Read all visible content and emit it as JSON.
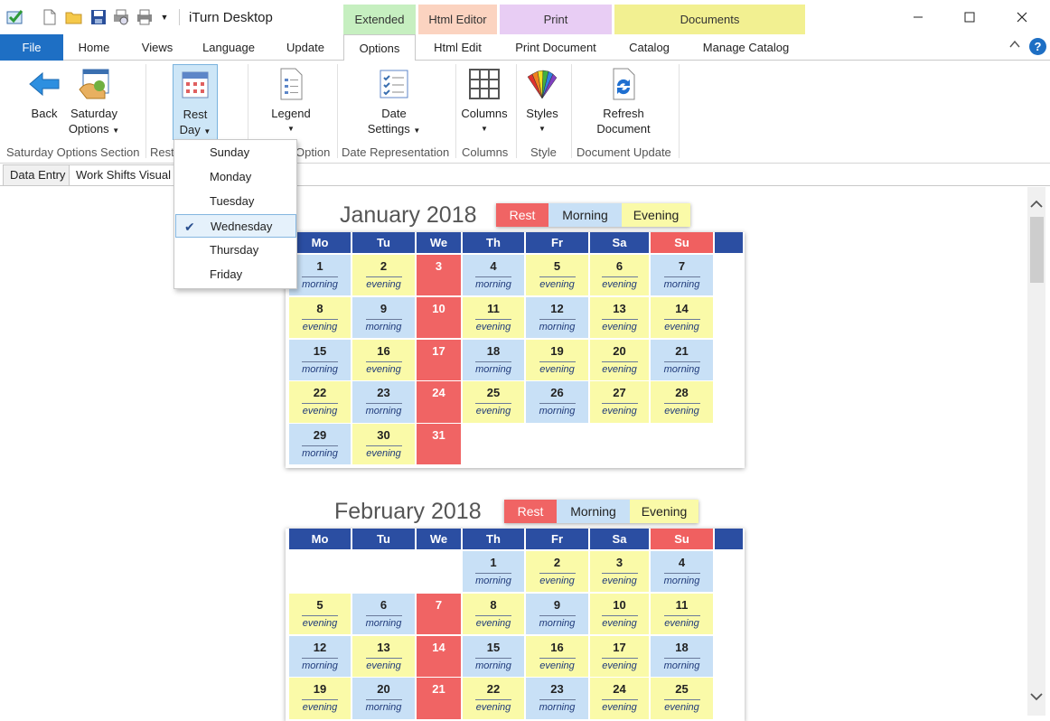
{
  "app": {
    "title": "iTurn Desktop"
  },
  "window": {
    "minimize_label": "—",
    "maximize_label": "☐",
    "close_label": "✕"
  },
  "context_groups": [
    {
      "label": "Extended",
      "color": "#c6efc0"
    },
    {
      "label": "Html Editor",
      "color": "#fbd3c0"
    },
    {
      "label": "Print",
      "color": "#e8cdf4"
    },
    {
      "label": "Documents",
      "color": "#f2f091"
    }
  ],
  "tabs": {
    "file": "File",
    "home": "Home",
    "views": "Views",
    "language": "Language",
    "update": "Update",
    "options": "Options",
    "html_edit": "Html Edit",
    "print_document": "Print Document",
    "catalog": "Catalog",
    "manage_catalog": "Manage Catalog",
    "help": "?",
    "collapse": "^"
  },
  "ribbon": {
    "back": "Back",
    "saturday_options_1": "Saturday",
    "saturday_options_2": "Options",
    "rest_day_1": "Rest",
    "rest_day_2": "Day",
    "legend": "Legend",
    "date_settings_1": "Date",
    "date_settings_2": "Settings",
    "columns": "Columns",
    "styles": "Styles",
    "refresh_1": "Refresh",
    "refresh_2": "Document",
    "groups": {
      "saturday": "Saturday Options Section",
      "rest": "Rest",
      "legend_option": "Option",
      "date_representation": "Date Representation",
      "columns": "Columns",
      "style": "Style",
      "document_update": "Document Update"
    }
  },
  "doc_tabs": {
    "data_entry": "Data Entry",
    "work_shifts": "Work Shifts Visual"
  },
  "dropdown": {
    "items": [
      "Sunday",
      "Monday",
      "Tuesday",
      "Wednesday",
      "Thursday",
      "Friday"
    ],
    "selected": "Wednesday",
    "check": "✔"
  },
  "colors": {
    "morning": "#c8e0f6",
    "evening": "#fafaa8",
    "rest": "#f06464",
    "header": "#2b4ea2"
  },
  "calendar": {
    "weekdays": [
      "Mo",
      "Tu",
      "We",
      "Th",
      "Fr",
      "Sa",
      "Su"
    ],
    "legend": [
      "Rest",
      "Morning",
      "Evening"
    ],
    "months": [
      {
        "title": "January 2018",
        "weeks": [
          [
            [
              "1",
              "morning"
            ],
            [
              "2",
              "evening"
            ],
            [
              "3",
              "rest"
            ],
            [
              "4",
              "morning"
            ],
            [
              "5",
              "evening"
            ],
            [
              "6",
              "evening"
            ],
            [
              "7",
              "morning"
            ]
          ],
          [
            [
              "8",
              "evening"
            ],
            [
              "9",
              "morning"
            ],
            [
              "10",
              "rest"
            ],
            [
              "11",
              "evening"
            ],
            [
              "12",
              "morning"
            ],
            [
              "13",
              "evening"
            ],
            [
              "14",
              "evening"
            ]
          ],
          [
            [
              "15",
              "morning"
            ],
            [
              "16",
              "evening"
            ],
            [
              "17",
              "rest"
            ],
            [
              "18",
              "morning"
            ],
            [
              "19",
              "evening"
            ],
            [
              "20",
              "evening"
            ],
            [
              "21",
              "morning"
            ]
          ],
          [
            [
              "22",
              "evening"
            ],
            [
              "23",
              "morning"
            ],
            [
              "24",
              "rest"
            ],
            [
              "25",
              "evening"
            ],
            [
              "26",
              "morning"
            ],
            [
              "27",
              "evening"
            ],
            [
              "28",
              "evening"
            ]
          ],
          [
            [
              "29",
              "morning"
            ],
            [
              "30",
              "evening"
            ],
            [
              "31",
              "rest"
            ],
            null,
            null,
            null,
            null
          ]
        ]
      },
      {
        "title": "February 2018",
        "weeks": [
          [
            null,
            null,
            null,
            [
              "1",
              "morning"
            ],
            [
              "2",
              "evening"
            ],
            [
              "3",
              "evening"
            ],
            [
              "4",
              "morning"
            ]
          ],
          [
            [
              "5",
              "evening"
            ],
            [
              "6",
              "morning"
            ],
            [
              "7",
              "rest"
            ],
            [
              "8",
              "evening"
            ],
            [
              "9",
              "morning"
            ],
            [
              "10",
              "evening"
            ],
            [
              "11",
              "evening"
            ]
          ],
          [
            [
              "12",
              "morning"
            ],
            [
              "13",
              "evening"
            ],
            [
              "14",
              "rest"
            ],
            [
              "15",
              "morning"
            ],
            [
              "16",
              "evening"
            ],
            [
              "17",
              "evening"
            ],
            [
              "18",
              "morning"
            ]
          ],
          [
            [
              "19",
              "evening"
            ],
            [
              "20",
              "morning"
            ],
            [
              "21",
              "rest"
            ],
            [
              "22",
              "evening"
            ],
            [
              "23",
              "morning"
            ],
            [
              "24",
              "evening"
            ],
            [
              "25",
              "evening"
            ]
          ]
        ]
      }
    ]
  }
}
